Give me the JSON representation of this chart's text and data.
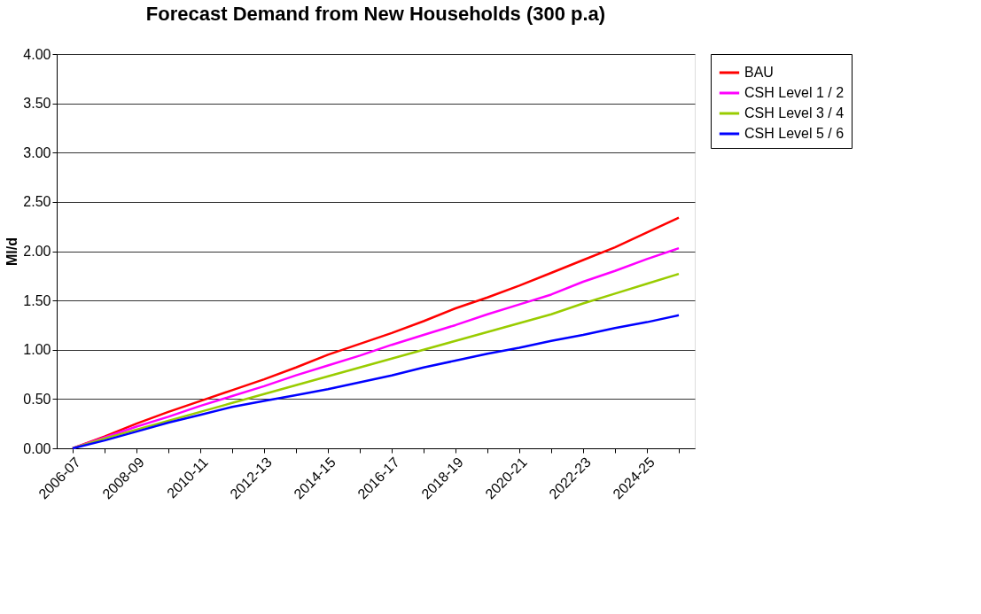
{
  "chart_data": {
    "type": "line",
    "title": "Forecast Demand from New Households (300 p.a)",
    "ylabel": "Ml/d",
    "categories": [
      "2006-07",
      null,
      "2008-09",
      null,
      "2010-11",
      null,
      "2012-13",
      null,
      "2014-15",
      null,
      "2016-17",
      null,
      "2018-19",
      null,
      "2020-21",
      null,
      "2022-23",
      null,
      "2024-25",
      null
    ],
    "series": [
      {
        "name": "BAU",
        "color": "#ff0000",
        "values": [
          0,
          0.12,
          0.25,
          0.37,
          0.48,
          0.59,
          0.7,
          0.82,
          0.95,
          1.06,
          1.17,
          1.29,
          1.42,
          1.53,
          1.65,
          1.78,
          1.91,
          2.04,
          2.19,
          2.34
        ]
      },
      {
        "name": "CSH Level 1 / 2",
        "color": "#ff00ff",
        "values": [
          0,
          0.11,
          0.22,
          0.32,
          0.43,
          0.53,
          0.63,
          0.74,
          0.84,
          0.94,
          1.05,
          1.15,
          1.25,
          1.36,
          1.46,
          1.56,
          1.69,
          1.8,
          1.92,
          2.03
        ]
      },
      {
        "name": "CSH Level 3 / 4",
        "color": "#99cc00",
        "values": [
          0,
          0.1,
          0.19,
          0.28,
          0.37,
          0.46,
          0.55,
          0.64,
          0.73,
          0.82,
          0.91,
          1.0,
          1.09,
          1.18,
          1.27,
          1.36,
          1.47,
          1.57,
          1.67,
          1.77
        ]
      },
      {
        "name": "CSH Level 5 / 6",
        "color": "#0000ff",
        "values": [
          0,
          0.08,
          0.17,
          0.26,
          0.34,
          0.42,
          0.48,
          0.54,
          0.6,
          0.67,
          0.74,
          0.82,
          0.89,
          0.96,
          1.02,
          1.09,
          1.15,
          1.22,
          1.28,
          1.35
        ]
      }
    ],
    "ylim": [
      0,
      4
    ],
    "yticks": [
      {
        "value": 0,
        "label": "0.00"
      },
      {
        "value": 0.5,
        "label": "0.50"
      },
      {
        "value": 1,
        "label": "1.00"
      },
      {
        "value": 1.5,
        "label": "1.50"
      },
      {
        "value": 2,
        "label": "2.00"
      },
      {
        "value": 2.5,
        "label": "2.50"
      },
      {
        "value": 3,
        "label": "3.00"
      },
      {
        "value": 3.5,
        "label": "3.50"
      },
      {
        "value": 4,
        "label": "4.00"
      }
    ],
    "grid": "y",
    "legend": "right",
    "marker": "none",
    "line_style": "solid"
  }
}
